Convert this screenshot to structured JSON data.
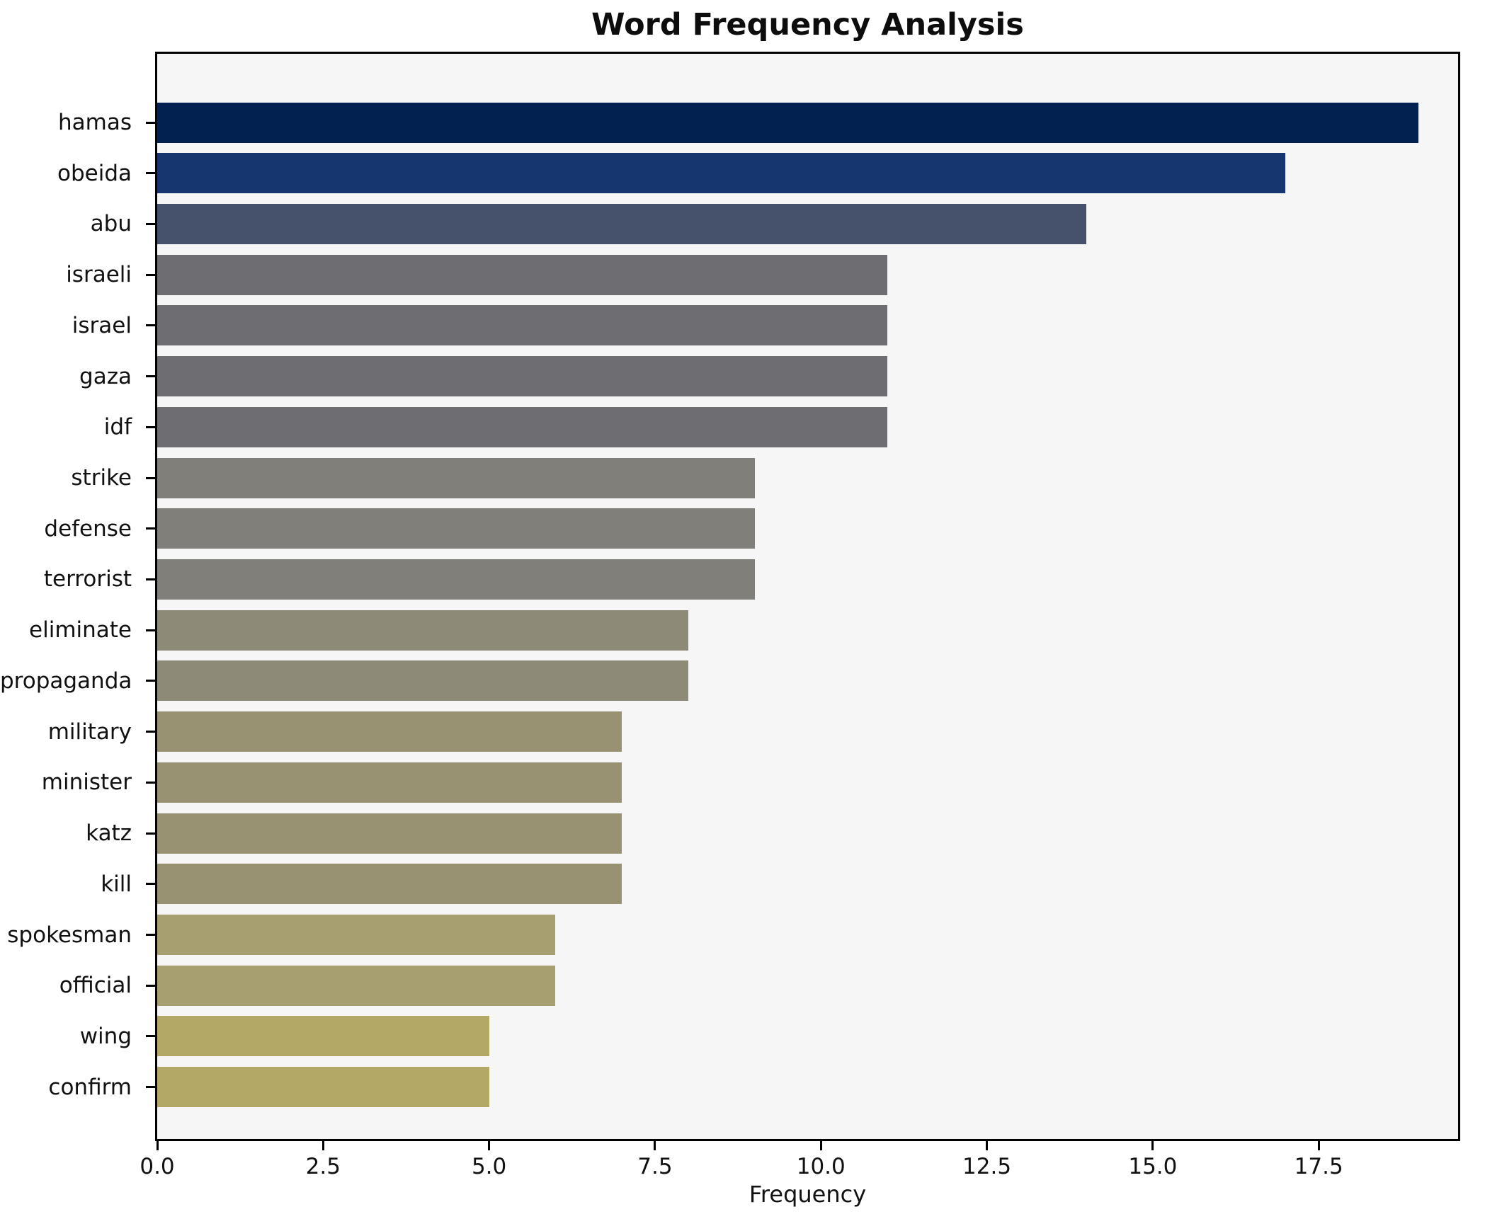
{
  "chart_data": {
    "type": "bar",
    "orientation": "horizontal",
    "title": "Word Frequency Analysis",
    "xlabel": "Frequency",
    "ylabel": "",
    "categories": [
      "hamas",
      "obeida",
      "abu",
      "israeli",
      "israel",
      "gaza",
      "idf",
      "strike",
      "defense",
      "terrorist",
      "eliminate",
      "propaganda",
      "military",
      "minister",
      "katz",
      "kill",
      "spokesman",
      "official",
      "wing",
      "confirm"
    ],
    "values": [
      19,
      17,
      14,
      11,
      11,
      11,
      11,
      9,
      9,
      9,
      8,
      8,
      7,
      7,
      7,
      7,
      6,
      6,
      5,
      5
    ],
    "bar_colors": [
      "#022050",
      "#15366e",
      "#46516c",
      "#6e6d71",
      "#6e6d71",
      "#6e6d71",
      "#6e6d71",
      "#817f79",
      "#817f79",
      "#817f79",
      "#8d8a77",
      "#8d8a77",
      "#989172",
      "#989172",
      "#989172",
      "#989172",
      "#a89f70",
      "#a89f70",
      "#b4a866",
      "#b4a866"
    ],
    "xlim": [
      0,
      19.6
    ],
    "xticks": [
      0,
      2.5,
      5,
      7.5,
      10,
      12.5,
      15,
      17.5
    ],
    "xtick_labels": [
      "0.0",
      "2.5",
      "5.0",
      "7.5",
      "10.0",
      "12.5",
      "15.0",
      "17.5"
    ],
    "grid": false,
    "legend": false,
    "plot_background": "#f6f6f7",
    "figure_background": "#ffffff",
    "spine_color": "#000000",
    "text_color": "#111111"
  }
}
